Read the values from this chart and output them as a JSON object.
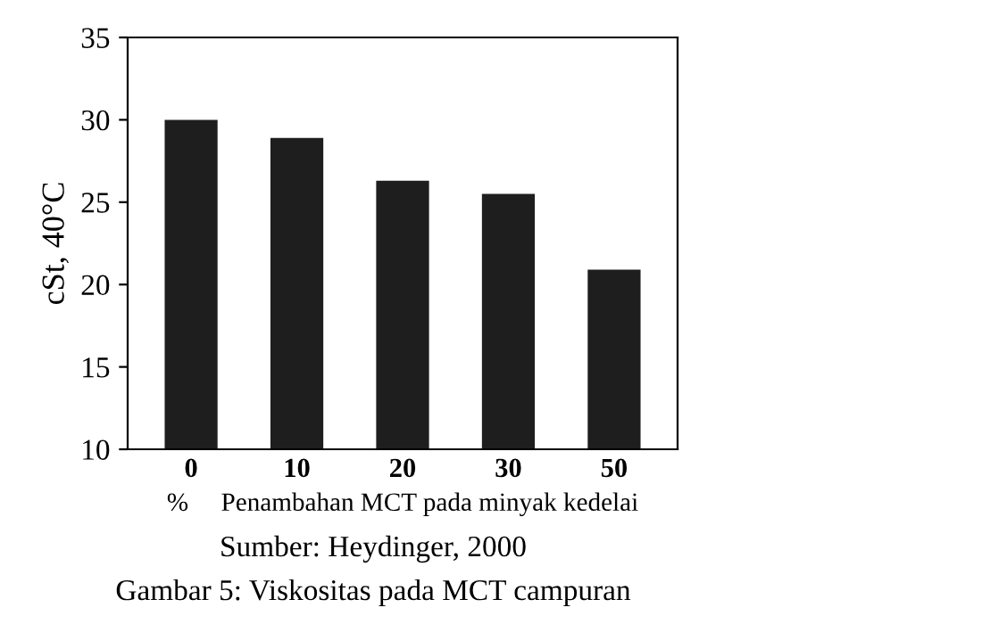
{
  "chart_data": {
    "type": "bar",
    "ylabel": "cSt, 40°C",
    "xlabel": "%     Penambahan MCT pada minyak kedelai",
    "categories": [
      "0",
      "10",
      "20",
      "30",
      "50"
    ],
    "values": [
      30.0,
      28.9,
      26.3,
      25.5,
      20.9
    ],
    "color": "#1e1e1e",
    "ylim": [
      10,
      35
    ],
    "yticks": [
      10,
      15,
      20,
      25,
      30,
      35
    ],
    "grid": false,
    "legend": false,
    "annotations": [
      "Sumber: Heydinger, 2000",
      "Gambar 5: Viskositas pada MCT campuran"
    ]
  }
}
